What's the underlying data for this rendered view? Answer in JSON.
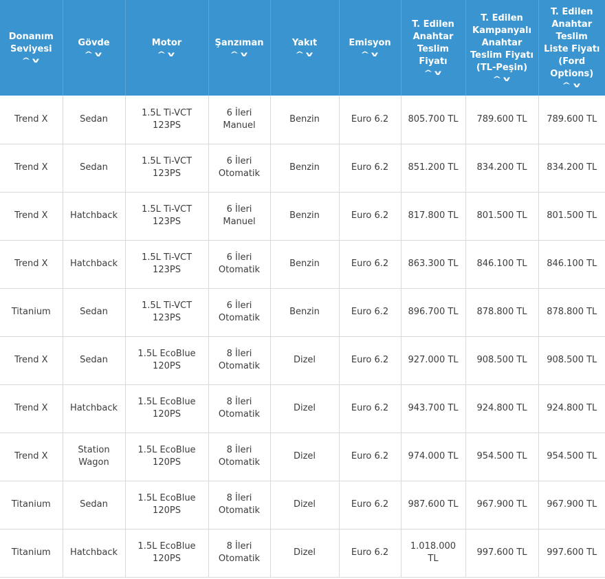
{
  "columns": [
    {
      "label_lines": [
        "Donanım",
        "Seviyesi"
      ]
    },
    {
      "label_lines": [
        "Gövde"
      ]
    },
    {
      "label_lines": [
        "Motor"
      ]
    },
    {
      "label_lines": [
        "Şanzıman"
      ]
    },
    {
      "label_lines": [
        "Yakıt"
      ]
    },
    {
      "label_lines": [
        "Emisyon"
      ]
    },
    {
      "label_lines": [
        "T. Edilen",
        "Anahtar",
        "Teslim",
        "Fiyatı"
      ]
    },
    {
      "label_lines": [
        "T. Edilen",
        "Kampanyalı",
        "Anahtar",
        "Teslim Fiyatı",
        "(TL-Peşin)"
      ]
    },
    {
      "label_lines": [
        "T. Edilen",
        "Anahtar",
        "Teslim",
        "Liste Fiyatı",
        "(Ford",
        "Options)"
      ]
    }
  ],
  "sort_icon": "chevron-up-down-icon",
  "rows": [
    [
      "Trend X",
      "Sedan",
      [
        "1.5L Ti-VCT",
        "123PS"
      ],
      [
        "6 İleri",
        "Manuel"
      ],
      "Benzin",
      "Euro 6.2",
      "805.700 TL",
      "789.600 TL",
      "789.600 TL"
    ],
    [
      "Trend X",
      "Sedan",
      [
        "1.5L Ti-VCT",
        "123PS"
      ],
      [
        "6 İleri",
        "Otomatik"
      ],
      "Benzin",
      "Euro 6.2",
      "851.200 TL",
      "834.200 TL",
      "834.200 TL"
    ],
    [
      "Trend X",
      "Hatchback",
      [
        "1.5L Ti-VCT",
        "123PS"
      ],
      [
        "6 İleri",
        "Manuel"
      ],
      "Benzin",
      "Euro 6.2",
      "817.800 TL",
      "801.500 TL",
      "801.500 TL"
    ],
    [
      "Trend X",
      "Hatchback",
      [
        "1.5L Ti-VCT",
        "123PS"
      ],
      [
        "6 İleri",
        "Otomatik"
      ],
      "Benzin",
      "Euro 6.2",
      "863.300 TL",
      "846.100 TL",
      "846.100 TL"
    ],
    [
      "Titanium",
      "Sedan",
      [
        "1.5L Ti-VCT",
        "123PS"
      ],
      [
        "6 İleri",
        "Otomatik"
      ],
      "Benzin",
      "Euro 6.2",
      "896.700 TL",
      "878.800 TL",
      "878.800 TL"
    ],
    [
      "Trend X",
      "Sedan",
      [
        "1.5L EcoBlue",
        "120PS"
      ],
      [
        "8 İleri",
        "Otomatik"
      ],
      "Dizel",
      "Euro 6.2",
      "927.000 TL",
      "908.500 TL",
      "908.500 TL"
    ],
    [
      "Trend X",
      "Hatchback",
      [
        "1.5L EcoBlue",
        "120PS"
      ],
      [
        "8 İleri",
        "Otomatik"
      ],
      "Dizel",
      "Euro 6.2",
      "943.700 TL",
      "924.800 TL",
      "924.800 TL"
    ],
    [
      "Trend X",
      [
        "Station",
        "Wagon"
      ],
      [
        "1.5L EcoBlue",
        "120PS"
      ],
      [
        "8 İleri",
        "Otomatik"
      ],
      "Dizel",
      "Euro 6.2",
      "974.000 TL",
      "954.500 TL",
      "954.500 TL"
    ],
    [
      "Titanium",
      "Sedan",
      [
        "1.5L EcoBlue",
        "120PS"
      ],
      [
        "8 İleri",
        "Otomatik"
      ],
      "Dizel",
      "Euro 6.2",
      "987.600 TL",
      "967.900 TL",
      "967.900 TL"
    ],
    [
      "Titanium",
      "Hatchback",
      [
        "1.5L EcoBlue",
        "120PS"
      ],
      [
        "8 İleri",
        "Otomatik"
      ],
      "Dizel",
      "Euro 6.2",
      [
        "1.018.000",
        "TL"
      ],
      "997.600 TL",
      "997.600 TL"
    ]
  ]
}
